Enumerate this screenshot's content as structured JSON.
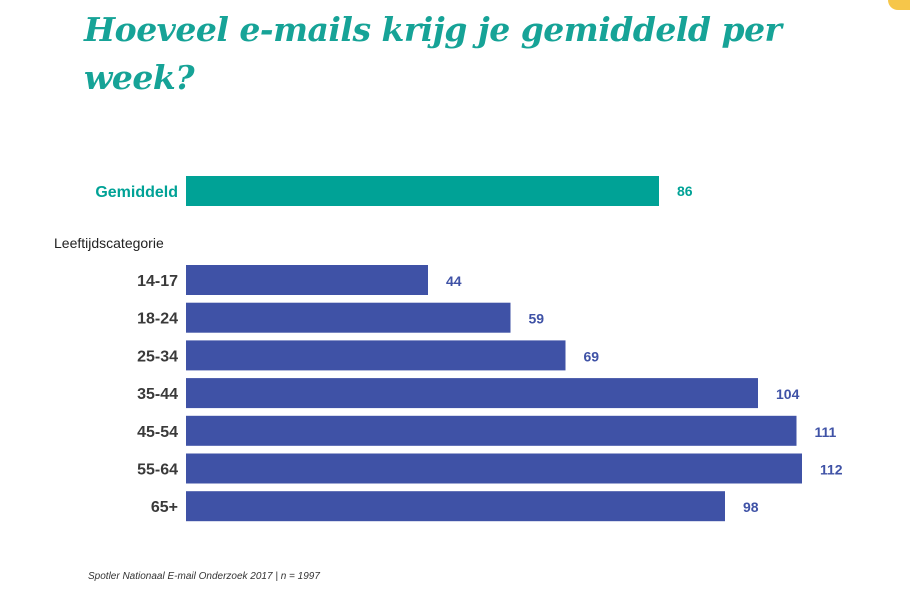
{
  "title": "Hoeveel e-mails krijg je gemiddeld per week?",
  "source": "Spotler Nationaal E-mail Onderzoek 2017 | n = 1997",
  "colors": {
    "title": "#16a397",
    "average": "#00a296",
    "category": "#3f52a6",
    "category_label": "#3a3a3a",
    "corner_accent": "#f6c64a"
  },
  "chart_data": {
    "type": "bar",
    "orientation": "horizontal",
    "title": "Hoeveel e-mails krijg je gemiddeld per week?",
    "average": {
      "label": "Gemiddeld",
      "value": 86
    },
    "group_label": "Leeftijdscategorie",
    "categories": [
      "14-17",
      "18-24",
      "25-34",
      "35-44",
      "45-54",
      "55-64",
      "65+"
    ],
    "values": [
      44,
      59,
      69,
      104,
      111,
      112,
      98
    ],
    "xlim": [
      0,
      112
    ],
    "grid": false,
    "legend": "none",
    "data_labels": true
  }
}
